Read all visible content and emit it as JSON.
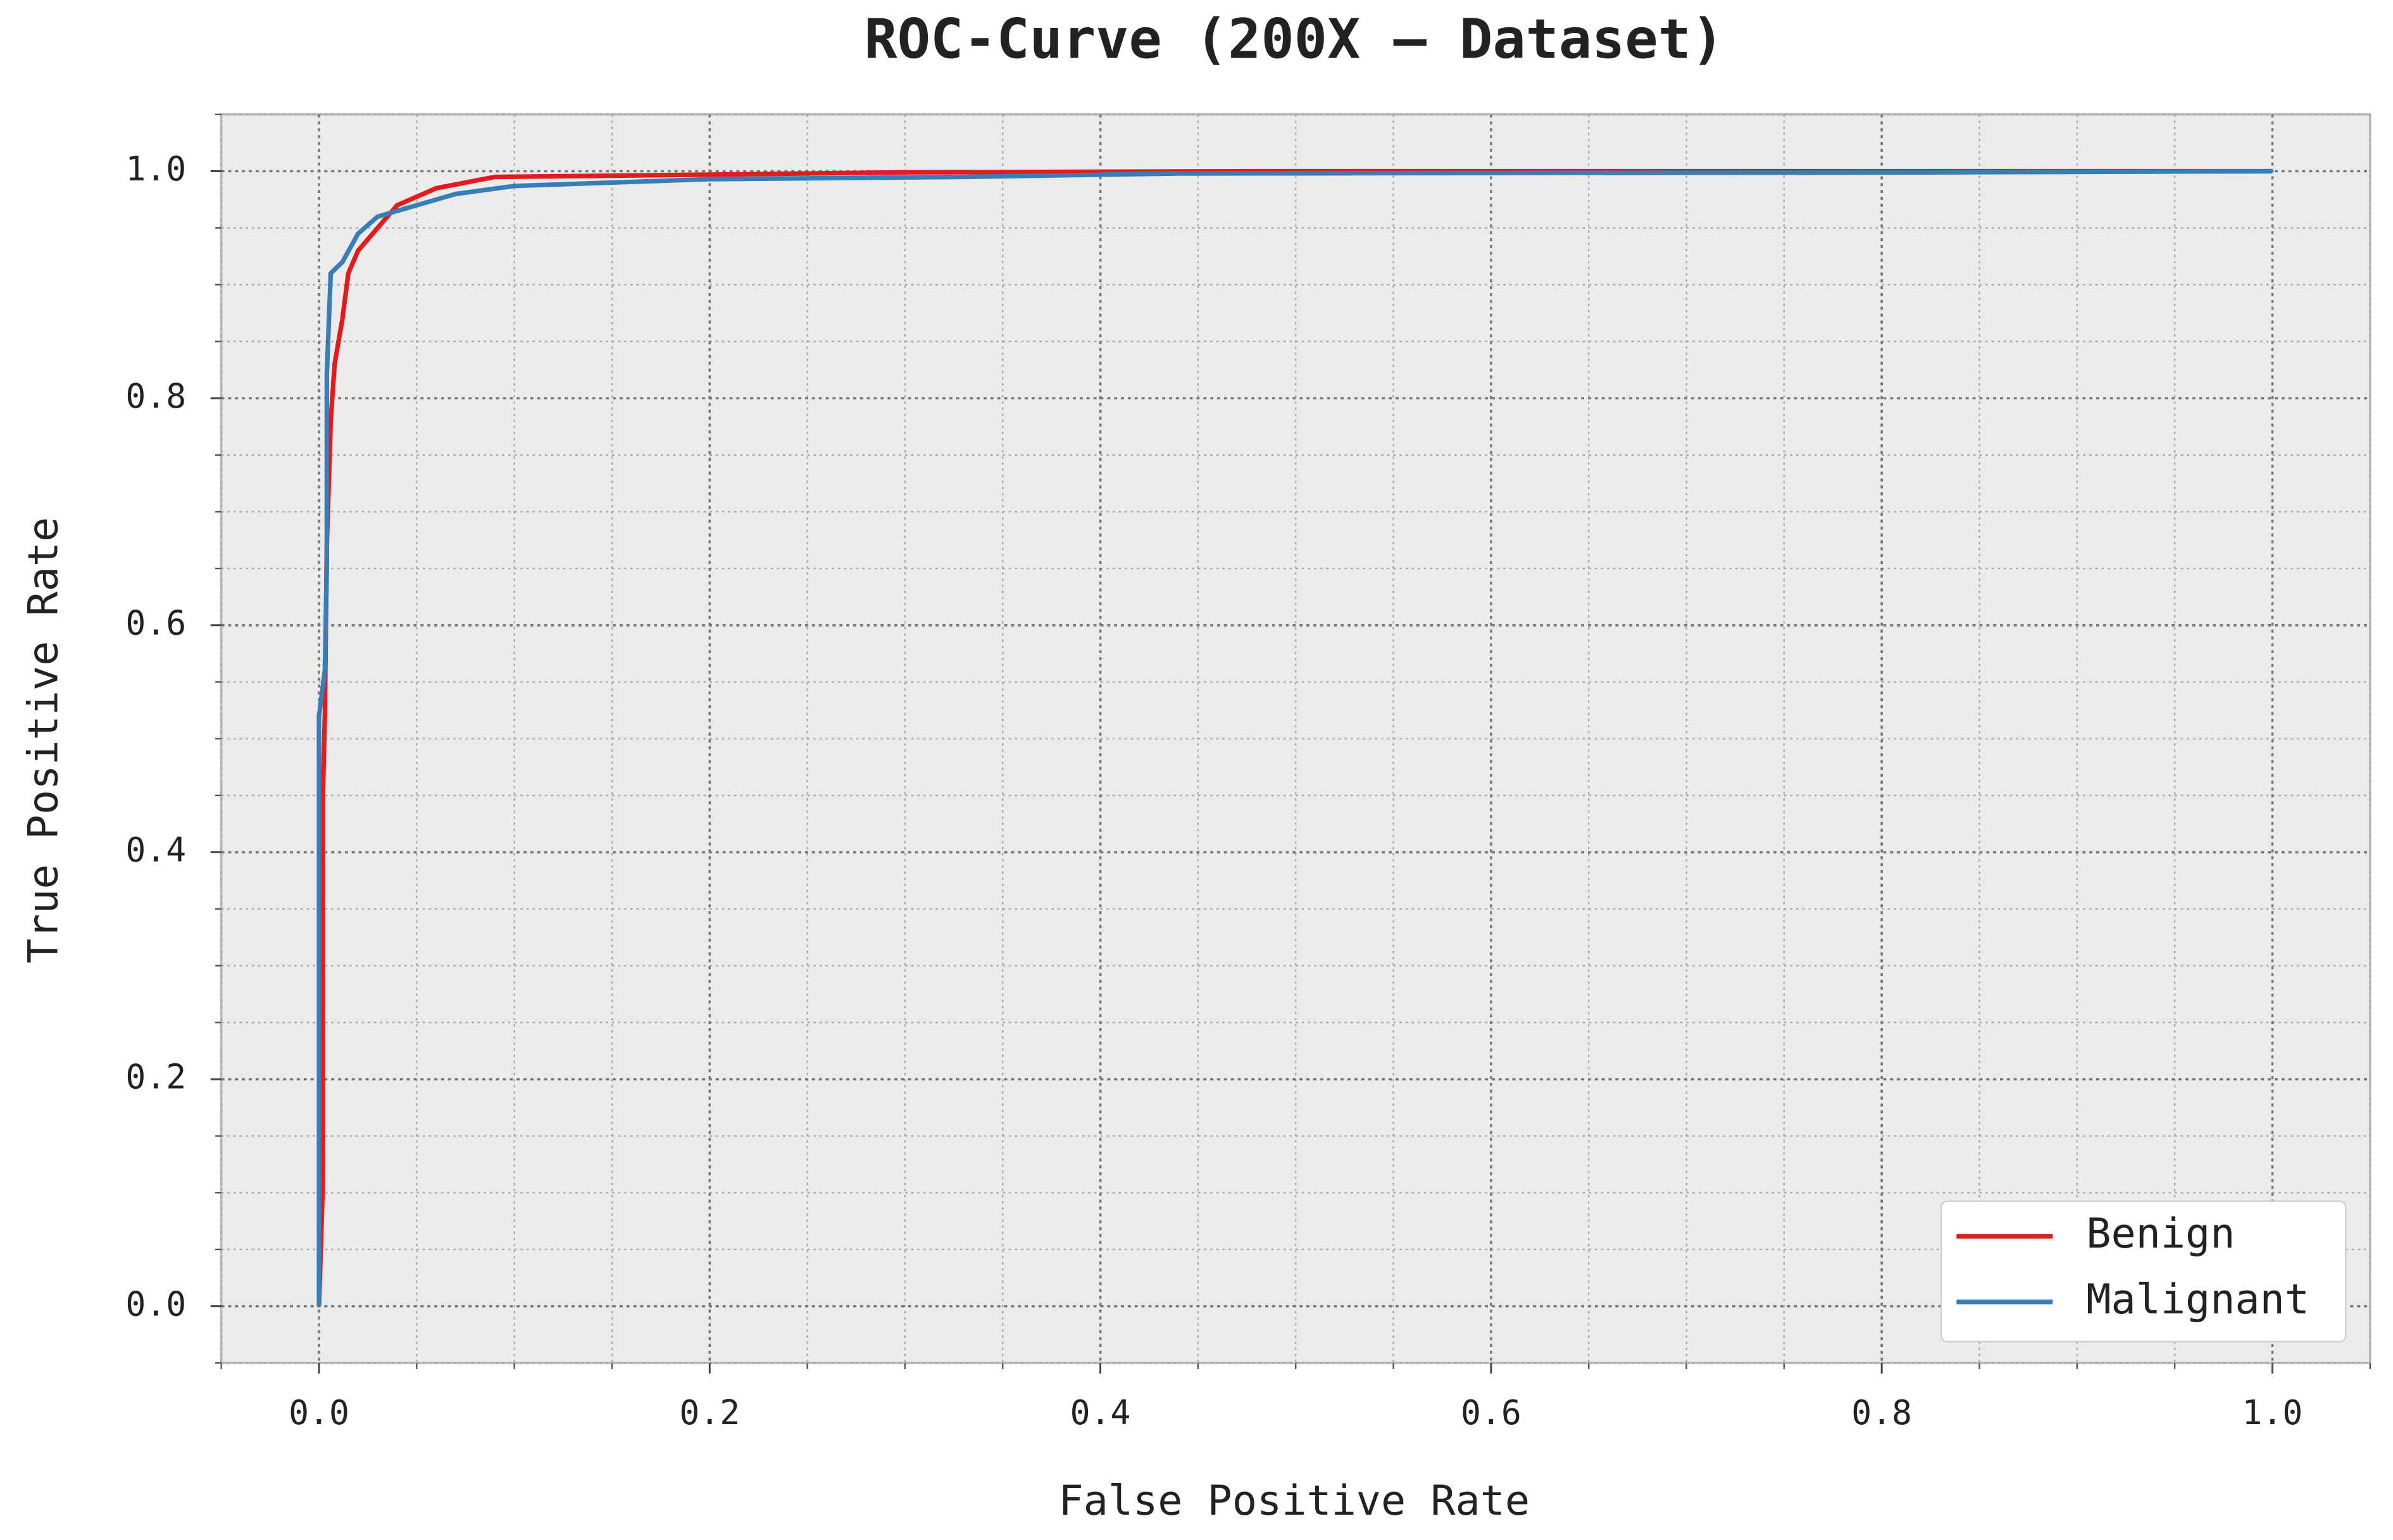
{
  "chart_data": {
    "type": "line",
    "title": "ROC-Curve (200X – Dataset)",
    "x_label": "False Positive Rate",
    "y_label": "True Positive Rate",
    "xlim": [
      -0.05,
      1.05
    ],
    "ylim": [
      -0.05,
      1.05
    ],
    "xticks": [
      {
        "value": 0,
        "label": "0.0"
      },
      0.2,
      0.4,
      0.6,
      0.8,
      {
        "value": 1,
        "label": "1.0"
      }
    ],
    "yticks": [
      {
        "value": 0,
        "label": "0.0"
      },
      0.2,
      0.4,
      0.6,
      0.8,
      {
        "value": 1,
        "label": "1.0"
      }
    ],
    "xminorticks": [
      -0.05,
      0.05,
      0.1,
      0.15,
      0.25,
      0.3,
      0.35,
      0.45,
      0.5,
      0.55,
      0.65,
      0.7,
      0.75,
      0.85,
      0.9,
      0.95,
      1.05
    ],
    "yminorticks": [
      -0.05,
      0.05,
      0.1,
      0.15,
      0.25,
      0.3,
      0.35,
      0.45,
      0.5,
      0.55,
      0.65,
      0.7,
      0.75,
      0.85,
      0.9,
      0.95,
      1.05
    ],
    "grid": true,
    "legend_position": "lower right",
    "series": [
      {
        "name": "Benign",
        "color": "#e41a1c",
        "x": [
          0,
          0.002,
          0.002,
          0.003,
          0.004,
          0.006,
          0.008,
          0.012,
          0.015,
          0.02,
          0.03,
          0.04,
          0.06,
          0.09,
          0.2,
          0.3,
          0.48,
          1.0
        ],
        "values": [
          0,
          0.11,
          0.45,
          0.52,
          0.67,
          0.78,
          0.83,
          0.87,
          0.91,
          0.93,
          0.95,
          0.97,
          0.985,
          0.995,
          0.997,
          0.999,
          1.0,
          1.0
        ]
      },
      {
        "name": "Malignant",
        "color": "#377eb8",
        "x": [
          0,
          0,
          0.003,
          0.004,
          0.004,
          0.006,
          0.012,
          0.02,
          0.03,
          0.05,
          0.07,
          0.1,
          0.2,
          0.33,
          0.44,
          0.83,
          1.0
        ],
        "values": [
          0,
          0.52,
          0.56,
          0.65,
          0.82,
          0.91,
          0.92,
          0.945,
          0.96,
          0.97,
          0.98,
          0.987,
          0.993,
          0.995,
          0.998,
          0.999,
          1.0
        ]
      }
    ]
  }
}
